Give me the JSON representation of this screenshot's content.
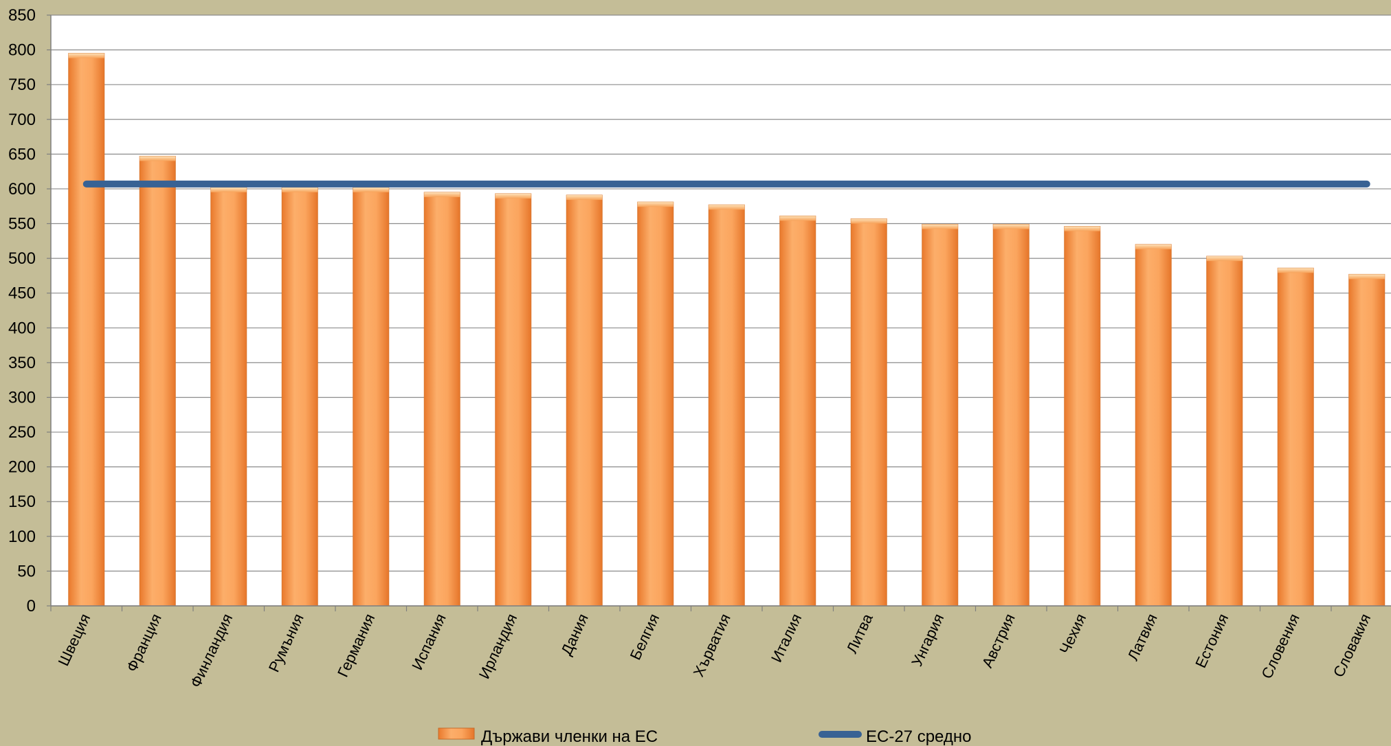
{
  "chart_data": {
    "type": "bar",
    "categories": [
      "Швеция",
      "Франция",
      "Финландия",
      "Румъния",
      "Германия",
      "Испания",
      "Ирландия",
      "Дания",
      "Белгия",
      "Хърватия",
      "Италия",
      "Литва",
      "Унгария",
      "Австрия",
      "Чехия",
      "Латвия",
      "Естония",
      "Словения",
      "Словакия"
    ],
    "series": [
      {
        "name": "Държави членки на ЕС",
        "type": "bar",
        "color": "#f79646",
        "values": [
          795,
          647,
          602,
          602,
          602,
          595,
          593,
          591,
          581,
          577,
          561,
          557,
          549,
          549,
          546,
          520,
          503,
          486,
          477
        ]
      },
      {
        "name": "ЕС-27 средно",
        "type": "line",
        "color": "#386294",
        "value": 607
      }
    ],
    "ylim": [
      0,
      850
    ],
    "yticks": [
      0,
      50,
      100,
      150,
      200,
      250,
      300,
      350,
      400,
      450,
      500,
      550,
      600,
      650,
      700,
      750,
      800,
      850
    ],
    "grid": true,
    "legend_position": "bottom",
    "title": "",
    "xlabel": "",
    "ylabel": ""
  }
}
